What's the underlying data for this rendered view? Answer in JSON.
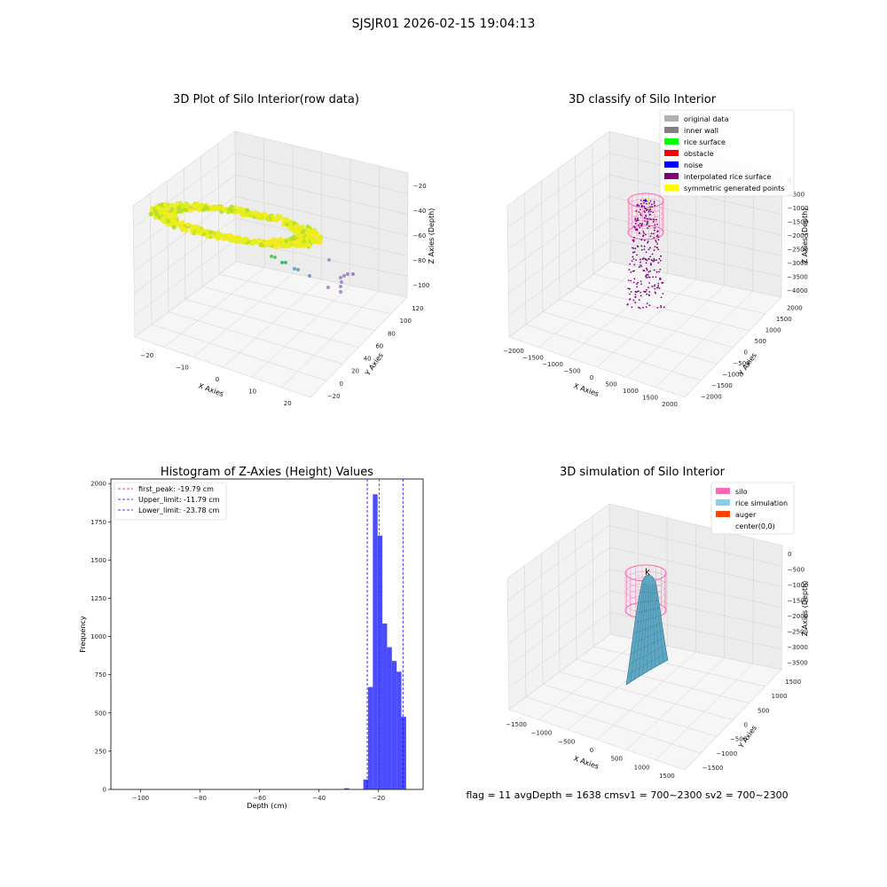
{
  "figure": {
    "title": "SJSJR01 2026-02-15 19:04:13",
    "footer": "flag = 11   avgDepth = 1638 cmsv1 = 700~2300  sv2 = 700~2300"
  },
  "chart_data": [
    {
      "type": "scatter",
      "projection": "3d",
      "title": "3D Plot of Silo Interior(row data)",
      "xlabel": "X Axies",
      "ylabel": "Y Axies",
      "zlabel": "Z Axies (Depth)",
      "xticks": [
        "−20",
        "−10",
        "0",
        "10",
        "20"
      ],
      "yticks": [
        "−20",
        "0",
        "20",
        "40",
        "60",
        "80",
        "100",
        "120"
      ],
      "zticks": [
        "−20",
        "−40",
        "−60",
        "−80",
        "−100"
      ],
      "xlim": [
        -25,
        25
      ],
      "ylim": [
        -25,
        125
      ],
      "zlim": [
        -110,
        -10
      ],
      "colormap": "viridis",
      "description_points": "dense ring of points near z≈-20 (yellow) with scattered points down to z≈-100 (purple)"
    },
    {
      "type": "scatter",
      "projection": "3d",
      "title": "3D classify of Silo Interior",
      "xlabel": "X Axies",
      "ylabel": "Y Axies",
      "zlabel": "Z Axies (Depth)",
      "xticks": [
        "−2000",
        "−1500",
        "−1000",
        "−500",
        "0",
        "500",
        "1000",
        "1500",
        "2000"
      ],
      "yticks": [
        "−2000",
        "−1500",
        "−1000",
        "−500",
        "0",
        "500",
        "1000",
        "1500",
        "2000"
      ],
      "zticks": [
        "0",
        "−500",
        "−1000",
        "−1500",
        "−2000",
        "−2500",
        "−3000",
        "−3500",
        "−4000"
      ],
      "legend": [
        {
          "label": "original data",
          "color": "#b0b0b0"
        },
        {
          "label": "inner wall",
          "color": "#808080"
        },
        {
          "label": "rice surface",
          "color": "#00ff00"
        },
        {
          "label": "obstacle",
          "color": "#ff0000"
        },
        {
          "label": "noise",
          "color": "#0000ff"
        },
        {
          "label": "interpolated rice surface",
          "color": "#800080"
        },
        {
          "label": "symmetric generated points",
          "color": "#ffff00"
        }
      ],
      "legend_loc": "upper right",
      "silo_color": "#ff69b4"
    },
    {
      "type": "bar",
      "title": "Histogram of Z-Axies (Height) Values",
      "xlabel": "Depth (cm)",
      "ylabel": "Frequency",
      "xlim": [
        -110,
        -5
      ],
      "ylim": [
        0,
        2030
      ],
      "xticks": [
        -100,
        -80,
        -60,
        -40,
        -20
      ],
      "yticks": [
        0,
        250,
        500,
        750,
        1000,
        1250,
        1500,
        1750,
        2000
      ],
      "bin_width": 1.6,
      "bins": [
        {
          "x": -31.5,
          "value": 8
        },
        {
          "x": -25.1,
          "value": 65
        },
        {
          "x": -23.5,
          "value": 670
        },
        {
          "x": -21.9,
          "value": 1930
        },
        {
          "x": -20.3,
          "value": 1660
        },
        {
          "x": -18.7,
          "value": 1085
        },
        {
          "x": -17.1,
          "value": 930
        },
        {
          "x": -15.5,
          "value": 840
        },
        {
          "x": -13.9,
          "value": 770
        },
        {
          "x": -12.3,
          "value": 475
        }
      ],
      "bar_color": "#0000ff",
      "vlines": [
        {
          "label": "first_peak: -19.79 cm",
          "x": -19.79,
          "color": "#ff0000"
        },
        {
          "label": "Upper_limit: -11.79 cm",
          "x": -11.79,
          "color": "#0000ff"
        },
        {
          "label": "Lower_limit: -23.78 cm",
          "x": -23.78,
          "color": "#0000ff"
        }
      ],
      "legend_loc": "upper left"
    },
    {
      "type": "surface",
      "projection": "3d",
      "title": "3D simulation of Silo Interior",
      "xlabel": "X Axies",
      "ylabel": "Y Axies",
      "zlabel": "Z Axies (Depth)",
      "xticks": [
        "−1500",
        "−1000",
        "−500",
        "0",
        "500",
        "1000",
        "1500"
      ],
      "yticks": [
        "−1500",
        "−1000",
        "−500",
        "0",
        "500",
        "1000",
        "1500"
      ],
      "zticks": [
        "0",
        "−500",
        "−1000",
        "−1500",
        "−2000",
        "−2500",
        "−3000",
        "−3500"
      ],
      "legend": [
        {
          "label": "silo",
          "color": "#ff69b4"
        },
        {
          "label": "rice simulation",
          "color": "#87ceeb"
        },
        {
          "label": "auger",
          "color": "#ff4500"
        },
        {
          "label": "center(0,0)",
          "color": ""
        }
      ],
      "legend_loc": "upper right",
      "center_marker": "k"
    }
  ]
}
